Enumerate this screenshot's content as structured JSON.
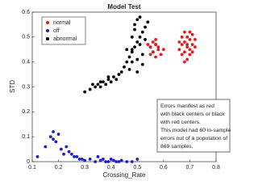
{
  "chart_data": {
    "type": "scatter",
    "title": "Model Test",
    "x_label": "Crossing_Rate",
    "y_label": "STD",
    "xlim": [
      0.1,
      0.8
    ],
    "xticks": [
      0.1,
      0.2,
      0.3,
      0.4,
      0.5,
      0.6,
      0.7,
      0.8
    ],
    "ylim": [
      0,
      0.6
    ],
    "yticks": [
      0,
      0.1,
      0.2,
      0.3,
      0.4,
      0.5,
      0.6
    ],
    "legend": "upper left",
    "grid": false,
    "annotation": [
      "Errors manifest as red",
      "with black centers or black",
      "with red centers.",
      "This model had 60 in-sample",
      "errors out of a population of",
      "869 samples."
    ],
    "series": [
      {
        "name": "normal",
        "color": "#e41a1c",
        "x": [
          0.66,
          0.67,
          0.68,
          0.69,
          0.7,
          0.71,
          0.72,
          0.67,
          0.68,
          0.69,
          0.7,
          0.71,
          0.68,
          0.69,
          0.7,
          0.66,
          0.67,
          0.71,
          0.72,
          0.69,
          0.68,
          0.7,
          0.55,
          0.56,
          0.57,
          0.58,
          0.59,
          0.56,
          0.57,
          0.58,
          0.6,
          0.54,
          0.55,
          0.57
        ],
        "values": [
          0.45,
          0.47,
          0.48,
          0.5,
          0.49,
          0.47,
          0.46,
          0.43,
          0.44,
          0.46,
          0.45,
          0.51,
          0.52,
          0.41,
          0.43,
          0.48,
          0.5,
          0.44,
          0.49,
          0.47,
          0.4,
          0.52,
          0.46,
          0.44,
          0.47,
          0.45,
          0.43,
          0.48,
          0.42,
          0.46,
          0.45,
          0.47,
          0.43,
          0.49
        ]
      },
      {
        "name": "off",
        "color": "#1f1fd0",
        "x": [
          0.12,
          0.15,
          0.17,
          0.18,
          0.19,
          0.2,
          0.21,
          0.22,
          0.24,
          0.26,
          0.18,
          0.23,
          0.28,
          0.3,
          0.32,
          0.34,
          0.36,
          0.38,
          0.4,
          0.42,
          0.44,
          0.46,
          0.48,
          0.5,
          0.35,
          0.37,
          0.39,
          0.41,
          0.43,
          0.25,
          0.27,
          0.29
        ],
        "values": [
          0.02,
          0.06,
          0.1,
          0.12,
          0.08,
          0.11,
          0.05,
          0.03,
          0.04,
          0.02,
          0.09,
          0.06,
          0.01,
          0.005,
          0.01,
          0,
          0.005,
          0,
          0.01,
          0,
          0.005,
          0,
          0,
          0.01,
          0.02,
          0.01,
          0,
          0.005,
          0,
          0.03,
          0.02,
          0.01
        ]
      },
      {
        "name": "abnormal",
        "color": "#000000",
        "x": [
          0.3,
          0.32,
          0.34,
          0.35,
          0.36,
          0.37,
          0.38,
          0.39,
          0.4,
          0.41,
          0.42,
          0.43,
          0.44,
          0.33,
          0.36,
          0.39,
          0.45,
          0.46,
          0.47,
          0.48,
          0.49,
          0.5,
          0.51,
          0.52,
          0.53,
          0.54,
          0.47,
          0.48,
          0.49,
          0.5,
          0.51,
          0.52,
          0.46,
          0.48,
          0.5,
          0.52,
          0.49,
          0.51,
          0.53,
          0.55,
          0.56,
          0.57,
          0.5,
          0.48
        ],
        "values": [
          0.28,
          0.29,
          0.3,
          0.31,
          0.3,
          0.32,
          0.31,
          0.33,
          0.32,
          0.34,
          0.33,
          0.35,
          0.36,
          0.31,
          0.32,
          0.34,
          0.38,
          0.4,
          0.42,
          0.44,
          0.46,
          0.48,
          0.5,
          0.52,
          0.54,
          0.56,
          0.37,
          0.45,
          0.55,
          0.57,
          0.47,
          0.43,
          0.45,
          0.5,
          0.41,
          0.39,
          0.53,
          0.58,
          0.49,
          0.46,
          0.44,
          0.47,
          0.36,
          0.4
        ]
      }
    ]
  }
}
